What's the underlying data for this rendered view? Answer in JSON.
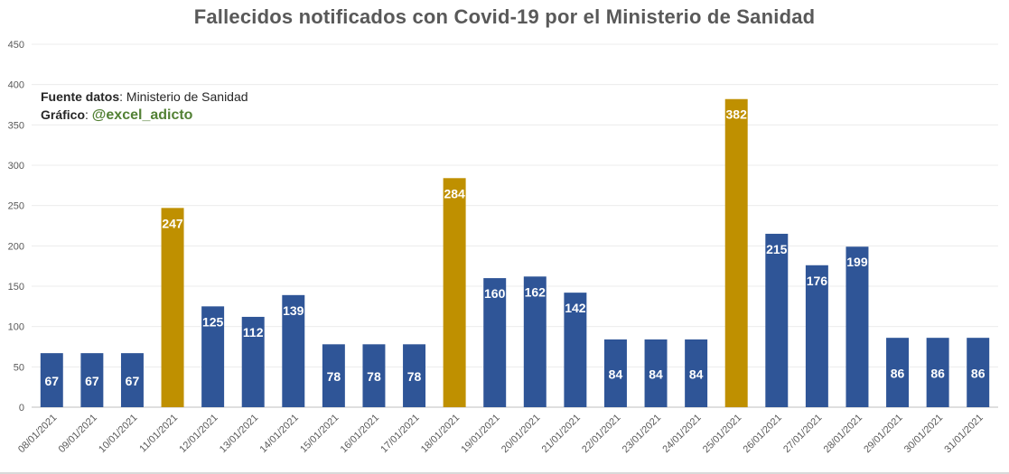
{
  "title": "Fallecidos notificados con Covid-19 por el Ministerio de Sanidad",
  "source": {
    "label": "Fuente datos",
    "sep": ": ",
    "value": "Ministerio de Sanidad"
  },
  "credit": {
    "label": "Gráfico",
    "sep": ": ",
    "value": "@excel_adicto"
  },
  "colors": {
    "normal": "#2f5597",
    "highlight": "#bf9000",
    "grid": "#ececec",
    "tick_text": "#595959",
    "label_text": "#ffffff"
  },
  "chart_data": {
    "type": "bar",
    "title": "Fallecidos notificados con Covid-19 por el Ministerio de Sanidad",
    "xlabel": "",
    "ylabel": "",
    "ylim": [
      0,
      450
    ],
    "yticks": [
      0,
      50,
      100,
      150,
      200,
      250,
      300,
      350,
      400,
      450
    ],
    "grid": true,
    "legend": "none",
    "categories": [
      "08/01/2021",
      "09/01/2021",
      "10/01/2021",
      "11/01/2021",
      "12/01/2021",
      "13/01/2021",
      "14/01/2021",
      "15/01/2021",
      "16/01/2021",
      "17/01/2021",
      "18/01/2021",
      "19/01/2021",
      "20/01/2021",
      "21/01/2021",
      "22/01/2021",
      "23/01/2021",
      "24/01/2021",
      "25/01/2021",
      "26/01/2021",
      "27/01/2021",
      "28/01/2021",
      "29/01/2021",
      "30/01/2021",
      "31/01/2021"
    ],
    "values": [
      67,
      67,
      67,
      247,
      125,
      112,
      139,
      78,
      78,
      78,
      284,
      160,
      162,
      142,
      84,
      84,
      84,
      382,
      215,
      176,
      199,
      86,
      86,
      86
    ],
    "highlighted": [
      "11/01/2021",
      "18/01/2021",
      "25/01/2021"
    ]
  }
}
